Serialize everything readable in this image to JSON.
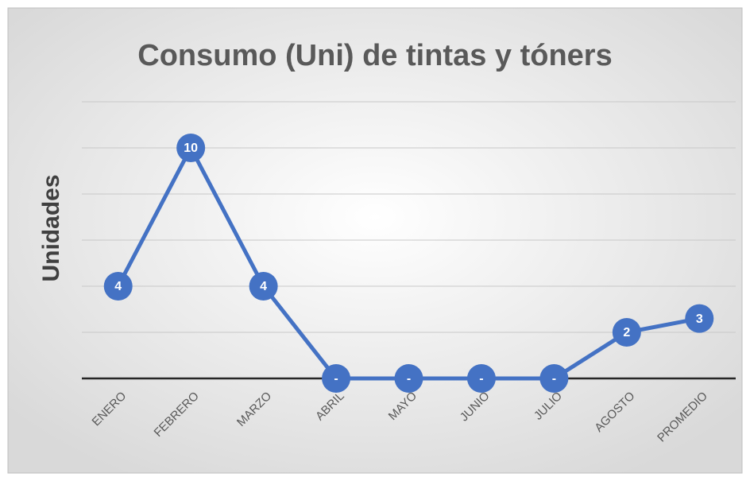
{
  "chart_data": {
    "type": "line",
    "title": "Consumo (Uni) de tintas y tóners",
    "y_label": "Unidades",
    "categories": [
      "ENERO",
      "FEBRERO",
      "MARZO",
      "ABRIL",
      "MAYO",
      "JUNIO",
      "JULIO",
      "AGOSTO",
      "PROMEDIO"
    ],
    "series": [
      {
        "name": "Unidades",
        "color": "#4472c4",
        "values": [
          4,
          10,
          4,
          0,
          0,
          0,
          0,
          2,
          2.6
        ],
        "value_labels": [
          "4",
          "10",
          "4",
          "-",
          "-",
          "-",
          "-",
          "2",
          "3"
        ]
      }
    ],
    "ylim": [
      0,
      12
    ],
    "yticks": [
      0,
      2,
      4,
      6,
      8,
      10,
      12
    ],
    "grid": true,
    "show_ytick_labels": false
  }
}
